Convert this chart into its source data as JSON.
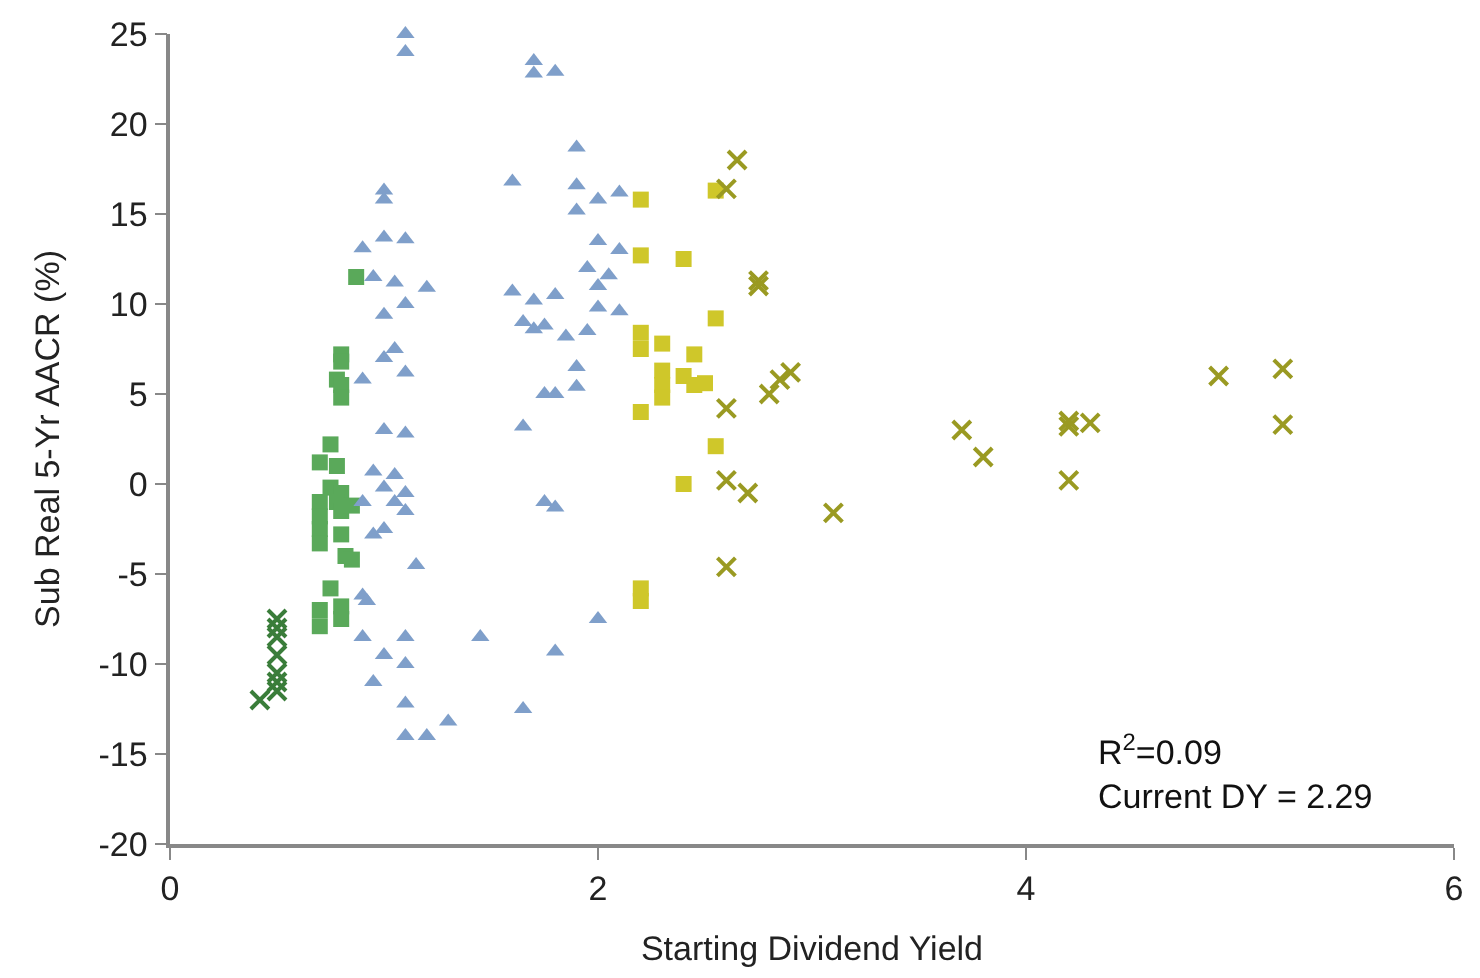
{
  "chart_data": {
    "type": "scatter",
    "xlabel": "Starting Dividend Yield",
    "ylabel": "Sub Real 5-Yr AACR (%)",
    "xlim": [
      0,
      6
    ],
    "xticks": [
      0,
      2,
      4,
      6
    ],
    "ylim": [
      -20,
      25
    ],
    "yticks": [
      -20,
      -15,
      -10,
      -5,
      0,
      5,
      10,
      15,
      20,
      25
    ],
    "annotations": [
      "R$^{2}$=0.09",
      "Current DY = 2.29"
    ],
    "series": [
      {
        "color": "#3a7d3a",
        "marker": "cross",
        "x": [
          0.42,
          0.5,
          0.5,
          0.5,
          0.5,
          0.5,
          0.5,
          0.5
        ],
        "values": [
          -12,
          -11.5,
          -11,
          -10.5,
          -9.5,
          -8.5,
          -8,
          -7.5
        ]
      },
      {
        "color": "#5aa95a",
        "marker": "square",
        "x": [
          0.87,
          0.8,
          0.8,
          0.78,
          0.8,
          0.8,
          0.75,
          0.7,
          0.78,
          0.75,
          0.8,
          0.7,
          0.7,
          0.78,
          0.8,
          0.85,
          0.7,
          0.7,
          0.8,
          0.82,
          0.85,
          0.75,
          0.7,
          0.8,
          0.7,
          0.8
        ],
        "values": [
          11.5,
          7.2,
          6.8,
          5.8,
          5.5,
          4.8,
          2.2,
          1.2,
          1.0,
          -0.2,
          -0.5,
          -1.0,
          -1.8,
          -1.0,
          -1.5,
          -1.2,
          -2.5,
          -3.3,
          -2.8,
          -4.0,
          -4.2,
          -5.8,
          -7.0,
          -6.8,
          -7.9,
          -7.5
        ]
      },
      {
        "color": "#7f9fca",
        "marker": "triangle",
        "x": [
          1.1,
          1.1,
          1.7,
          1.7,
          1.8,
          1.9,
          1.6,
          1.9,
          2.0,
          2.1,
          1.9,
          1.0,
          1.0,
          0.9,
          1.0,
          1.1,
          0.95,
          1.05,
          1.2,
          1.0,
          1.1,
          1.0,
          1.05,
          1.1,
          0.9,
          1.0,
          1.1,
          0.95,
          1.05,
          1.0,
          1.1,
          1.05,
          1.1,
          0.9,
          0.95,
          1.0,
          1.15,
          0.9,
          0.92,
          0.9,
          1.1,
          1.0,
          0.95,
          1.1,
          1.1,
          1.1,
          1.2,
          1.3,
          1.45,
          1.65,
          1.6,
          1.7,
          1.8,
          1.65,
          1.7,
          1.75,
          1.85,
          1.95,
          1.75,
          1.8,
          1.9,
          1.65,
          1.9,
          2.0,
          2.05,
          1.95,
          2.0,
          2.1,
          2.0,
          2.1,
          1.75,
          1.8,
          2.0,
          1.8
        ],
        "values": [
          25,
          24,
          23.5,
          22.8,
          22.9,
          18.7,
          16.8,
          16.6,
          15.8,
          16.2,
          15.2,
          16.3,
          15.8,
          13.1,
          13.7,
          13.6,
          11.5,
          11.2,
          10.9,
          9.4,
          10,
          7.0,
          7.5,
          6.2,
          5.8,
          3.0,
          2.8,
          0.7,
          0.5,
          -0.2,
          -0.5,
          -1.0,
          -1.5,
          -1.0,
          -2.8,
          -2.5,
          -4.5,
          -6.2,
          -6.5,
          -8.5,
          -8.5,
          -9.5,
          -11,
          -10.0,
          -12.2,
          -14,
          -14,
          -13.2,
          -8.5,
          -12.5,
          10.7,
          10.2,
          10.5,
          9,
          8.6,
          8.8,
          8.2,
          8.5,
          5.0,
          5.0,
          5.4,
          3.2,
          6.5,
          11.0,
          11.6,
          12,
          13.5,
          13,
          9.8,
          9.6,
          -1.0,
          -1.3,
          -7.5,
          -9.3
        ]
      },
      {
        "color": "#cfc72a",
        "marker": "square",
        "x": [
          2.2,
          2.55,
          2.2,
          2.4,
          2.55,
          2.2,
          2.2,
          2.3,
          2.45,
          2.3,
          2.4,
          2.3,
          2.45,
          2.5,
          2.3,
          2.2,
          2.55,
          2.4,
          2.2,
          2.2
        ],
        "values": [
          15.8,
          16.3,
          12.7,
          12.5,
          9.2,
          8.4,
          7.5,
          7.8,
          7.2,
          6.3,
          6.0,
          5.5,
          5.5,
          5.6,
          4.8,
          4.0,
          2.1,
          0.0,
          -5.8,
          -6.5
        ]
      },
      {
        "color": "#9a9a22",
        "marker": "cross",
        "x": [
          2.65,
          2.6,
          2.75,
          2.75,
          2.9,
          2.85,
          2.8,
          2.6,
          2.6,
          2.7,
          3.1,
          2.6,
          3.7,
          3.8,
          4.2,
          4.2,
          4.3,
          4.2,
          4.9,
          5.2,
          5.2
        ],
        "values": [
          18,
          16.4,
          11.3,
          11.0,
          6.2,
          5.8,
          5.0,
          4.2,
          0.2,
          -0.5,
          -1.6,
          -4.6,
          3.0,
          1.5,
          3.2,
          3.5,
          3.4,
          0.2,
          6.0,
          6.4,
          3.3
        ]
      }
    ]
  }
}
